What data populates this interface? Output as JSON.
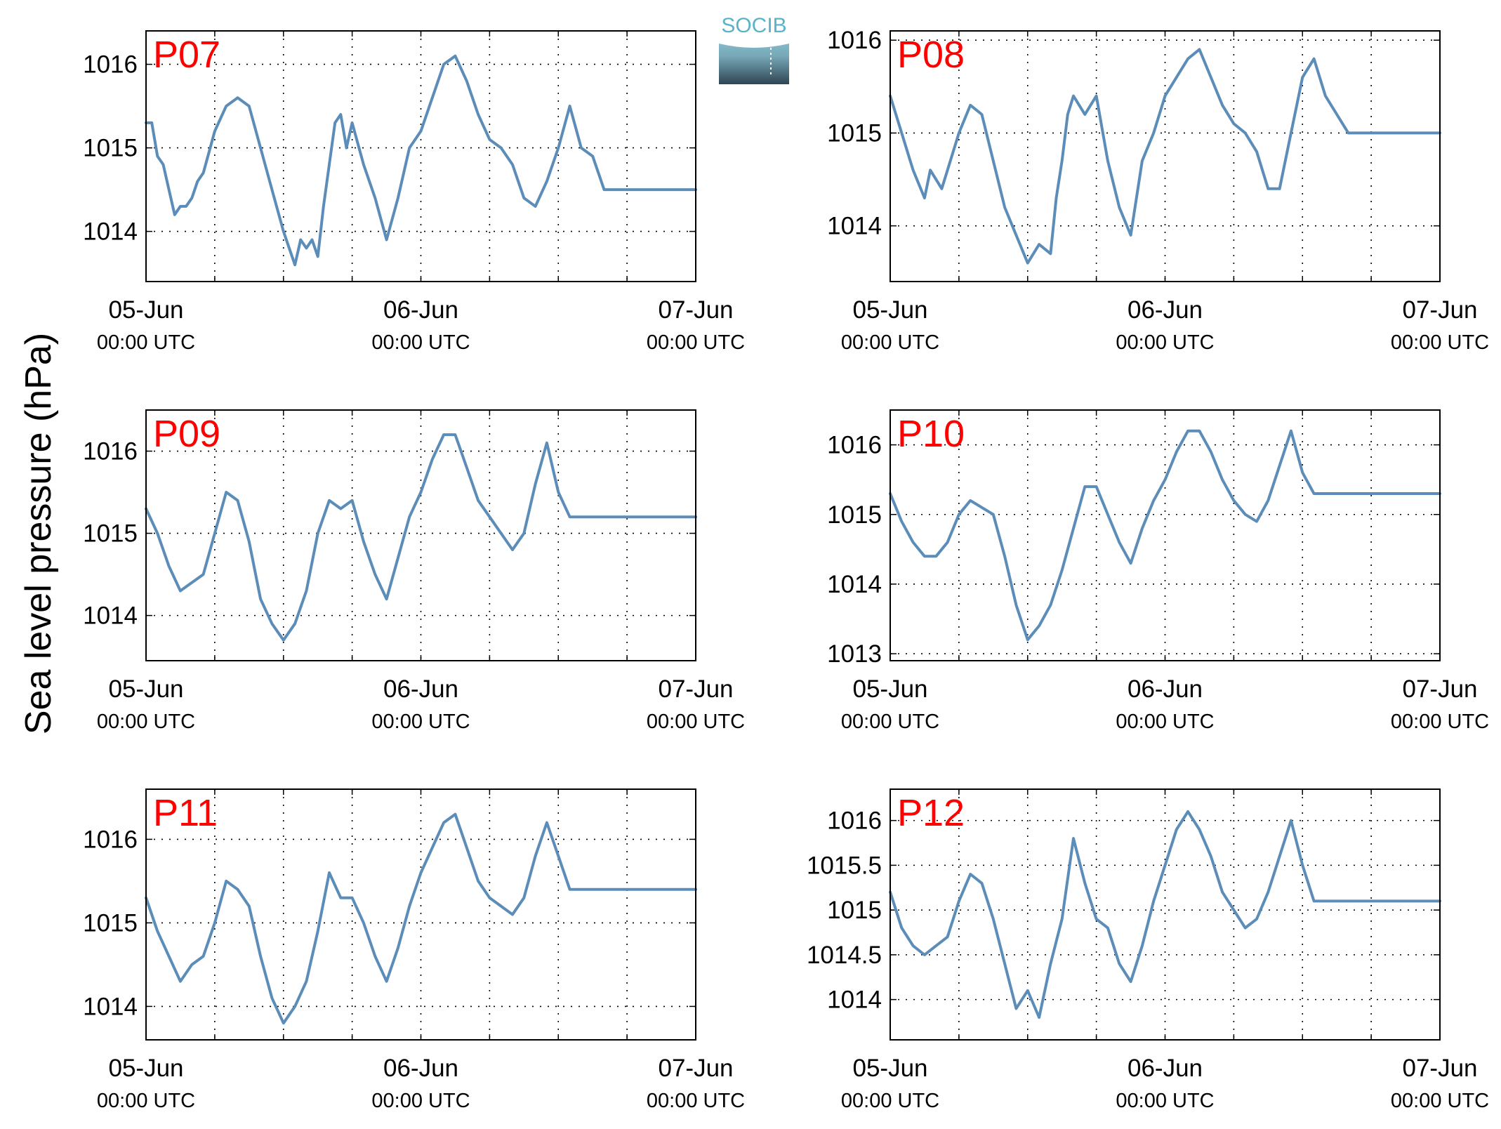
{
  "figure": {
    "ylabel": "Sea level pressure (hPa)",
    "logo_text": "SOCIB",
    "line_color": "#5b8db8",
    "label_color": "#ff0000"
  },
  "chart_data": [
    {
      "type": "line",
      "title": "P07",
      "xlabel": "",
      "ylabel": "",
      "x_ticks": [
        {
          "date": "05-Jun",
          "time": "00:00 UTC"
        },
        {
          "date": "06-Jun",
          "time": "00:00 UTC"
        },
        {
          "date": "07-Jun",
          "time": "00:00 UTC"
        }
      ],
      "x_unit": "hours since 05-Jun 00:00 UTC",
      "xlim": [
        0,
        48
      ],
      "ylim": [
        1013.4,
        1016.4
      ],
      "yticks": [
        1014,
        1015,
        1016
      ],
      "ytick_labels": [
        "1014",
        "1015",
        "1016"
      ],
      "grid": true,
      "series": [
        {
          "x": [
            0,
            0.5,
            1,
            1.5,
            2,
            2.5,
            3,
            3.5,
            4,
            4.5,
            5,
            6,
            7,
            8,
            9,
            10,
            11,
            12,
            13,
            13.5,
            14,
            14.5,
            15,
            15.5,
            16,
            16.5,
            17,
            17.5,
            18,
            19,
            20,
            21,
            22,
            23,
            24,
            25,
            26,
            27,
            28,
            29,
            30,
            31,
            32,
            33,
            34,
            35,
            36,
            37,
            38,
            39,
            40,
            41,
            42,
            43,
            44,
            45,
            46,
            47,
            48
          ],
          "values": [
            1015.3,
            1015.3,
            1014.9,
            1014.8,
            1014.5,
            1014.2,
            1014.3,
            1014.3,
            1014.4,
            1014.6,
            1014.7,
            1015.2,
            1015.5,
            1015.6,
            1015.5,
            1015.0,
            1014.5,
            1014.0,
            1013.6,
            1013.9,
            1013.8,
            1013.9,
            1013.7,
            1014.3,
            1014.8,
            1015.3,
            1015.4,
            1015.0,
            1015.3,
            1014.8,
            1014.4,
            1013.9,
            1014.4,
            1015.0,
            1015.2,
            1015.6,
            1016.0,
            1016.1,
            1015.8,
            1015.4,
            1015.1,
            1015.0,
            1014.8,
            1014.4,
            1014.3,
            1014.6,
            1015.0,
            1015.5,
            1015.0,
            1014.9,
            1014.5,
            1014.5,
            1014.5,
            1014.5,
            1014.5,
            1014.5,
            1014.5,
            1014.5,
            1014.5
          ]
        }
      ]
    },
    {
      "type": "line",
      "title": "P08",
      "xlabel": "",
      "ylabel": "",
      "x_ticks": [
        {
          "date": "05-Jun",
          "time": "00:00 UTC"
        },
        {
          "date": "06-Jun",
          "time": "00:00 UTC"
        },
        {
          "date": "07-Jun",
          "time": "00:00 UTC"
        }
      ],
      "x_unit": "hours since 05-Jun 00:00 UTC",
      "xlim": [
        0,
        48
      ],
      "ylim": [
        1013.4,
        1016.1
      ],
      "yticks": [
        1014,
        1015,
        1016
      ],
      "ytick_labels": [
        "1014",
        "1015",
        "1016"
      ],
      "grid": true,
      "series": [
        {
          "x": [
            0,
            1,
            2,
            3,
            3.5,
            4,
            4.5,
            5,
            6,
            7,
            8,
            9,
            10,
            11,
            12,
            13,
            14,
            14.5,
            15,
            15.5,
            16,
            17,
            18,
            19,
            20,
            21,
            22,
            23,
            24,
            25,
            26,
            27,
            28,
            29,
            30,
            31,
            32,
            33,
            34,
            35,
            36,
            37,
            38,
            39,
            40,
            41,
            42,
            43,
            44,
            45,
            46,
            47,
            48
          ],
          "values": [
            1015.4,
            1015.0,
            1014.6,
            1014.3,
            1014.6,
            1014.5,
            1014.4,
            1014.6,
            1015.0,
            1015.3,
            1015.2,
            1014.7,
            1014.2,
            1013.9,
            1013.6,
            1013.8,
            1013.7,
            1014.3,
            1014.7,
            1015.2,
            1015.4,
            1015.2,
            1015.4,
            1014.7,
            1014.2,
            1013.9,
            1014.7,
            1015.0,
            1015.4,
            1015.6,
            1015.8,
            1015.9,
            1015.6,
            1015.3,
            1015.1,
            1015.0,
            1014.8,
            1014.4,
            1014.4,
            1015.0,
            1015.6,
            1015.8,
            1015.4,
            1015.2,
            1015.0,
            1015.0,
            1015.0,
            1015.0,
            1015.0,
            1015.0,
            1015.0,
            1015.0,
            1015.0
          ]
        }
      ]
    },
    {
      "type": "line",
      "title": "P09",
      "xlabel": "",
      "ylabel": "",
      "x_ticks": [
        {
          "date": "05-Jun",
          "time": "00:00 UTC"
        },
        {
          "date": "06-Jun",
          "time": "00:00 UTC"
        },
        {
          "date": "07-Jun",
          "time": "00:00 UTC"
        }
      ],
      "x_unit": "hours since 05-Jun 00:00 UTC",
      "xlim": [
        0,
        48
      ],
      "ylim": [
        1013.45,
        1016.5
      ],
      "yticks": [
        1014,
        1015,
        1016
      ],
      "ytick_labels": [
        "1014",
        "1015",
        "1016"
      ],
      "grid": true,
      "series": [
        {
          "x": [
            0,
            1,
            2,
            3,
            4,
            5,
            6,
            7,
            8,
            9,
            10,
            11,
            12,
            13,
            14,
            15,
            16,
            17,
            18,
            19,
            20,
            21,
            22,
            23,
            24,
            25,
            26,
            27,
            28,
            29,
            30,
            31,
            32,
            33,
            34,
            35,
            36,
            37,
            38,
            39,
            40,
            41,
            42,
            43,
            44,
            45,
            46,
            47,
            48
          ],
          "values": [
            1015.3,
            1015.0,
            1014.6,
            1014.3,
            1014.4,
            1014.5,
            1015.0,
            1015.5,
            1015.4,
            1014.9,
            1014.2,
            1013.9,
            1013.7,
            1013.9,
            1014.3,
            1015.0,
            1015.4,
            1015.3,
            1015.4,
            1014.9,
            1014.5,
            1014.2,
            1014.7,
            1015.2,
            1015.5,
            1015.9,
            1016.2,
            1016.2,
            1015.8,
            1015.4,
            1015.2,
            1015.0,
            1014.8,
            1015.0,
            1015.6,
            1016.1,
            1015.5,
            1015.2,
            1015.2,
            1015.2,
            1015.2,
            1015.2,
            1015.2,
            1015.2,
            1015.2,
            1015.2,
            1015.2,
            1015.2,
            1015.2
          ]
        }
      ]
    },
    {
      "type": "line",
      "title": "P10",
      "xlabel": "",
      "ylabel": "",
      "x_ticks": [
        {
          "date": "05-Jun",
          "time": "00:00 UTC"
        },
        {
          "date": "06-Jun",
          "time": "00:00 UTC"
        },
        {
          "date": "07-Jun",
          "time": "00:00 UTC"
        }
      ],
      "x_unit": "hours since 05-Jun 00:00 UTC",
      "xlim": [
        0,
        48
      ],
      "ylim": [
        1012.9,
        1016.5
      ],
      "yticks": [
        1013,
        1014,
        1015,
        1016
      ],
      "ytick_labels": [
        "1013",
        "1014",
        "1015",
        "1016"
      ],
      "grid": true,
      "series": [
        {
          "x": [
            0,
            1,
            2,
            3,
            4,
            5,
            6,
            7,
            8,
            9,
            10,
            11,
            12,
            13,
            14,
            15,
            16,
            17,
            18,
            19,
            20,
            21,
            22,
            23,
            24,
            25,
            26,
            27,
            28,
            29,
            30,
            31,
            32,
            33,
            34,
            35,
            36,
            37,
            38,
            39,
            40,
            41,
            42,
            43,
            44,
            45,
            46,
            47,
            48
          ],
          "values": [
            1015.3,
            1014.9,
            1014.6,
            1014.4,
            1014.4,
            1014.6,
            1015.0,
            1015.2,
            1015.1,
            1015.0,
            1014.4,
            1013.7,
            1013.2,
            1013.4,
            1013.7,
            1014.2,
            1014.8,
            1015.4,
            1015.4,
            1015.0,
            1014.6,
            1014.3,
            1014.8,
            1015.2,
            1015.5,
            1015.9,
            1016.2,
            1016.2,
            1015.9,
            1015.5,
            1015.2,
            1015.0,
            1014.9,
            1015.2,
            1015.7,
            1016.2,
            1015.6,
            1015.3,
            1015.3,
            1015.3,
            1015.3,
            1015.3,
            1015.3,
            1015.3,
            1015.3,
            1015.3,
            1015.3,
            1015.3,
            1015.3
          ]
        }
      ]
    },
    {
      "type": "line",
      "title": "P11",
      "xlabel": "",
      "ylabel": "",
      "x_ticks": [
        {
          "date": "05-Jun",
          "time": "00:00 UTC"
        },
        {
          "date": "06-Jun",
          "time": "00:00 UTC"
        },
        {
          "date": "07-Jun",
          "time": "00:00 UTC"
        }
      ],
      "x_unit": "hours since 05-Jun 00:00 UTC",
      "xlim": [
        0,
        48
      ],
      "ylim": [
        1013.6,
        1016.6
      ],
      "yticks": [
        1014,
        1015,
        1016
      ],
      "ytick_labels": [
        "1014",
        "1015",
        "1016"
      ],
      "grid": true,
      "series": [
        {
          "x": [
            0,
            1,
            2,
            3,
            4,
            5,
            6,
            7,
            8,
            9,
            10,
            11,
            12,
            13,
            14,
            15,
            16,
            17,
            18,
            19,
            20,
            21,
            22,
            23,
            24,
            25,
            26,
            27,
            28,
            29,
            30,
            31,
            32,
            33,
            34,
            35,
            36,
            37,
            38,
            39,
            40,
            41,
            42,
            43,
            44,
            45,
            46,
            47,
            48
          ],
          "values": [
            1015.3,
            1014.9,
            1014.6,
            1014.3,
            1014.5,
            1014.6,
            1015.0,
            1015.5,
            1015.4,
            1015.2,
            1014.6,
            1014.1,
            1013.8,
            1014.0,
            1014.3,
            1014.9,
            1015.6,
            1015.3,
            1015.3,
            1015.0,
            1014.6,
            1014.3,
            1014.7,
            1015.2,
            1015.6,
            1015.9,
            1016.2,
            1016.3,
            1015.9,
            1015.5,
            1015.3,
            1015.2,
            1015.1,
            1015.3,
            1015.8,
            1016.2,
            1015.8,
            1015.4,
            1015.4,
            1015.4,
            1015.4,
            1015.4,
            1015.4,
            1015.4,
            1015.4,
            1015.4,
            1015.4,
            1015.4,
            1015.4
          ]
        }
      ]
    },
    {
      "type": "line",
      "title": "P12",
      "xlabel": "",
      "ylabel": "",
      "x_ticks": [
        {
          "date": "05-Jun",
          "time": "00:00 UTC"
        },
        {
          "date": "06-Jun",
          "time": "00:00 UTC"
        },
        {
          "date": "07-Jun",
          "time": "00:00 UTC"
        }
      ],
      "x_unit": "hours since 05-Jun 00:00 UTC",
      "xlim": [
        0,
        48
      ],
      "ylim": [
        1013.55,
        1016.35
      ],
      "yticks": [
        1014,
        1014.5,
        1015,
        1015.5,
        1016
      ],
      "ytick_labels": [
        "1014",
        "1014.5",
        "1015",
        "1015.5",
        "1016"
      ],
      "grid": true,
      "series": [
        {
          "x": [
            0,
            1,
            2,
            3,
            4,
            5,
            6,
            7,
            8,
            9,
            10,
            11,
            12,
            13,
            14,
            15,
            16,
            17,
            18,
            19,
            20,
            21,
            22,
            23,
            24,
            25,
            26,
            27,
            28,
            29,
            30,
            31,
            32,
            33,
            34,
            35,
            36,
            37,
            38,
            39,
            40,
            41,
            42,
            43,
            44,
            45,
            46,
            47,
            48
          ],
          "values": [
            1015.2,
            1014.8,
            1014.6,
            1014.5,
            1014.6,
            1014.7,
            1015.1,
            1015.4,
            1015.3,
            1014.9,
            1014.4,
            1013.9,
            1014.1,
            1013.8,
            1014.4,
            1014.9,
            1015.8,
            1015.3,
            1014.9,
            1014.8,
            1014.4,
            1014.2,
            1014.6,
            1015.1,
            1015.5,
            1015.9,
            1016.1,
            1015.9,
            1015.6,
            1015.2,
            1015.0,
            1014.8,
            1014.9,
            1015.2,
            1015.6,
            1016.0,
            1015.5,
            1015.1,
            1015.1,
            1015.1,
            1015.1,
            1015.1,
            1015.1,
            1015.1,
            1015.1,
            1015.1,
            1015.1,
            1015.1,
            1015.1
          ]
        }
      ]
    }
  ]
}
